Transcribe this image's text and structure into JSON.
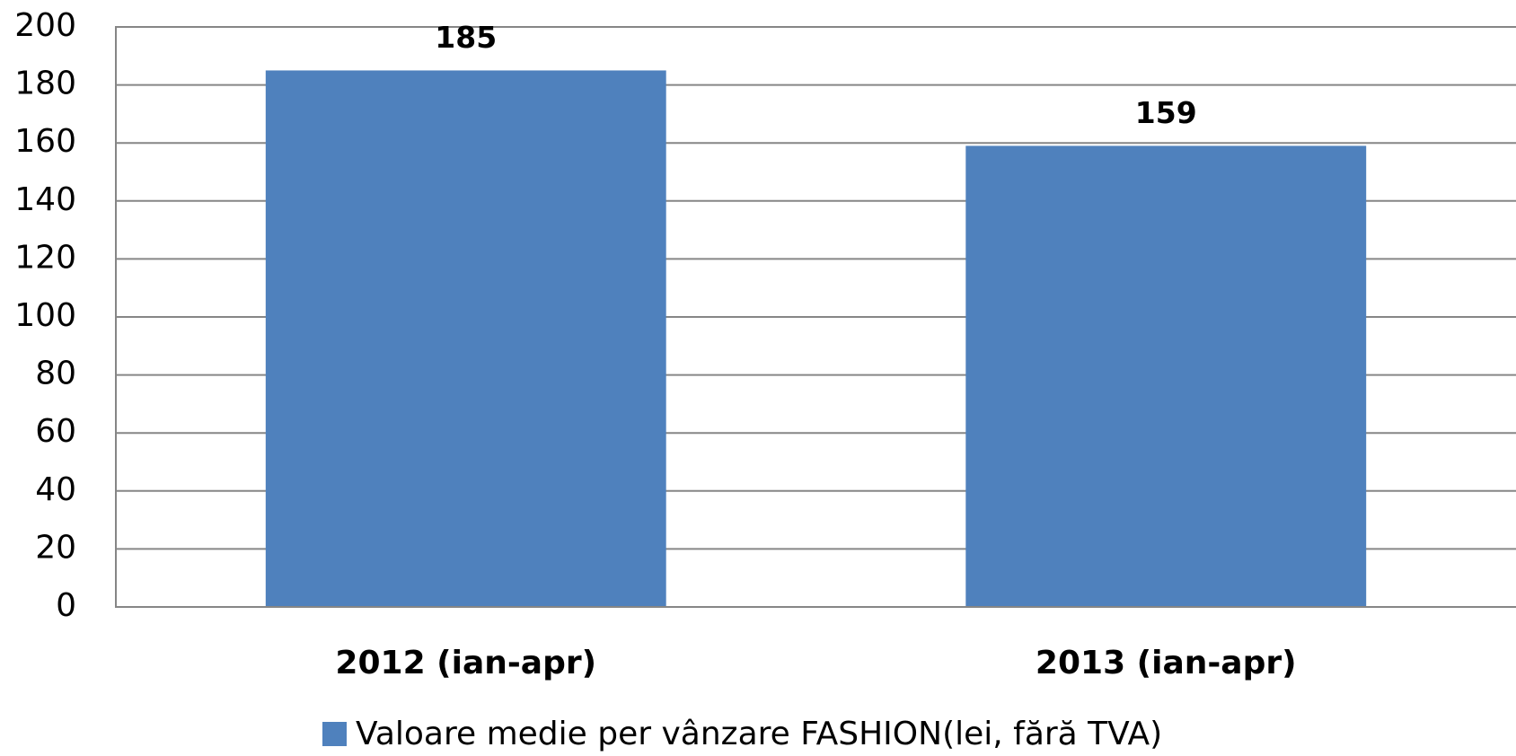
{
  "chart_data": {
    "type": "bar",
    "categories": [
      "2012 (ian-apr)",
      "2013 (ian-apr)"
    ],
    "series": [
      {
        "name": "Valoare medie per vânzare FASHION(lei, fără TVA)",
        "color": "#4f81bd",
        "values": [
          185,
          159
        ]
      }
    ],
    "ylim": [
      0,
      200
    ],
    "yticks": [
      0,
      20,
      40,
      60,
      80,
      100,
      120,
      140,
      160,
      180,
      200
    ],
    "grid": true,
    "legend": "bottom"
  }
}
